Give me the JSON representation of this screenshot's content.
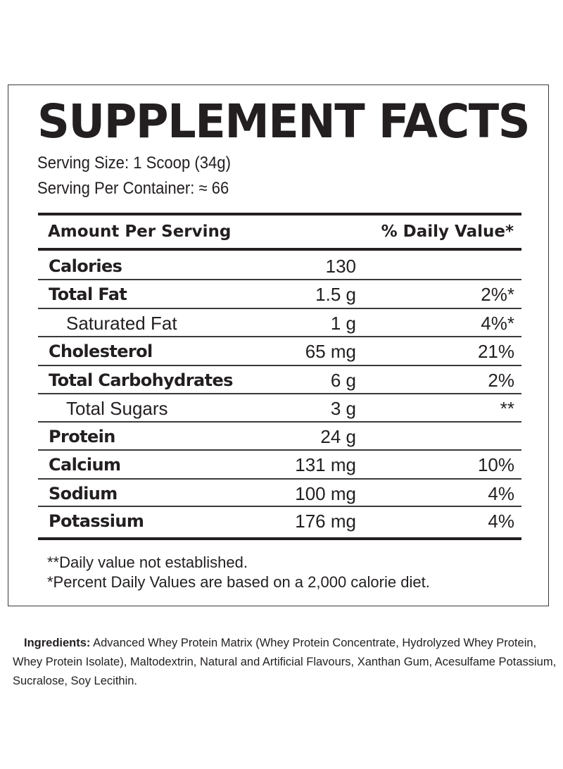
{
  "label": {
    "title": "SUPPLEMENT FACTS",
    "serving_size": "Serving Size:  1 Scoop (34g)",
    "servings_per_container": "Serving Per Container: ≈ 66",
    "header": {
      "amount": "Amount Per Serving",
      "daily_value": "% Daily Value*"
    },
    "rows": [
      {
        "name": "Calories",
        "amount": "130",
        "dv": "",
        "bold": true,
        "indent": false
      },
      {
        "name": "Total Fat",
        "amount": "1.5 g",
        "dv": "2%*",
        "bold": true,
        "indent": false
      },
      {
        "name": "Saturated Fat",
        "amount": "1 g",
        "dv": "4%*",
        "bold": false,
        "indent": true
      },
      {
        "name": "Cholesterol",
        "amount": "65 mg",
        "dv": "21%",
        "bold": true,
        "indent": false
      },
      {
        "name": "Total Carbohydrates",
        "amount": "6 g",
        "dv": "2%",
        "bold": true,
        "indent": false
      },
      {
        "name": "Total Sugars",
        "amount": "3 g",
        "dv": "**",
        "bold": false,
        "indent": true
      },
      {
        "name": "Protein",
        "amount": "24 g",
        "dv": "",
        "bold": true,
        "indent": false
      },
      {
        "name": "Calcium",
        "amount": "131 mg",
        "dv": "10%",
        "bold": true,
        "indent": false
      },
      {
        "name": "Sodium",
        "amount": "100 mg",
        "dv": "4%",
        "bold": true,
        "indent": false
      },
      {
        "name": "Potassium",
        "amount": "176 mg",
        "dv": "4%",
        "bold": true,
        "indent": false
      }
    ],
    "footnotes": [
      "**Daily value not established.",
      "*Percent Daily Values are based on a 2,000 calorie diet."
    ]
  },
  "ingredients": {
    "label": "Ingredients:",
    "text": " Advanced Whey Protein Matrix (Whey Protein Concentrate, Hydrolyzed Whey Protein, Whey Protein Isolate), Maltodextrin, Natural and Artificial Flavours, Xanthan Gum, Acesulfame Potassium, Sucralose, Soy Lecithin."
  },
  "colors": {
    "text": "#231f20",
    "border": "#3a3a3a",
    "background": "#ffffff"
  }
}
